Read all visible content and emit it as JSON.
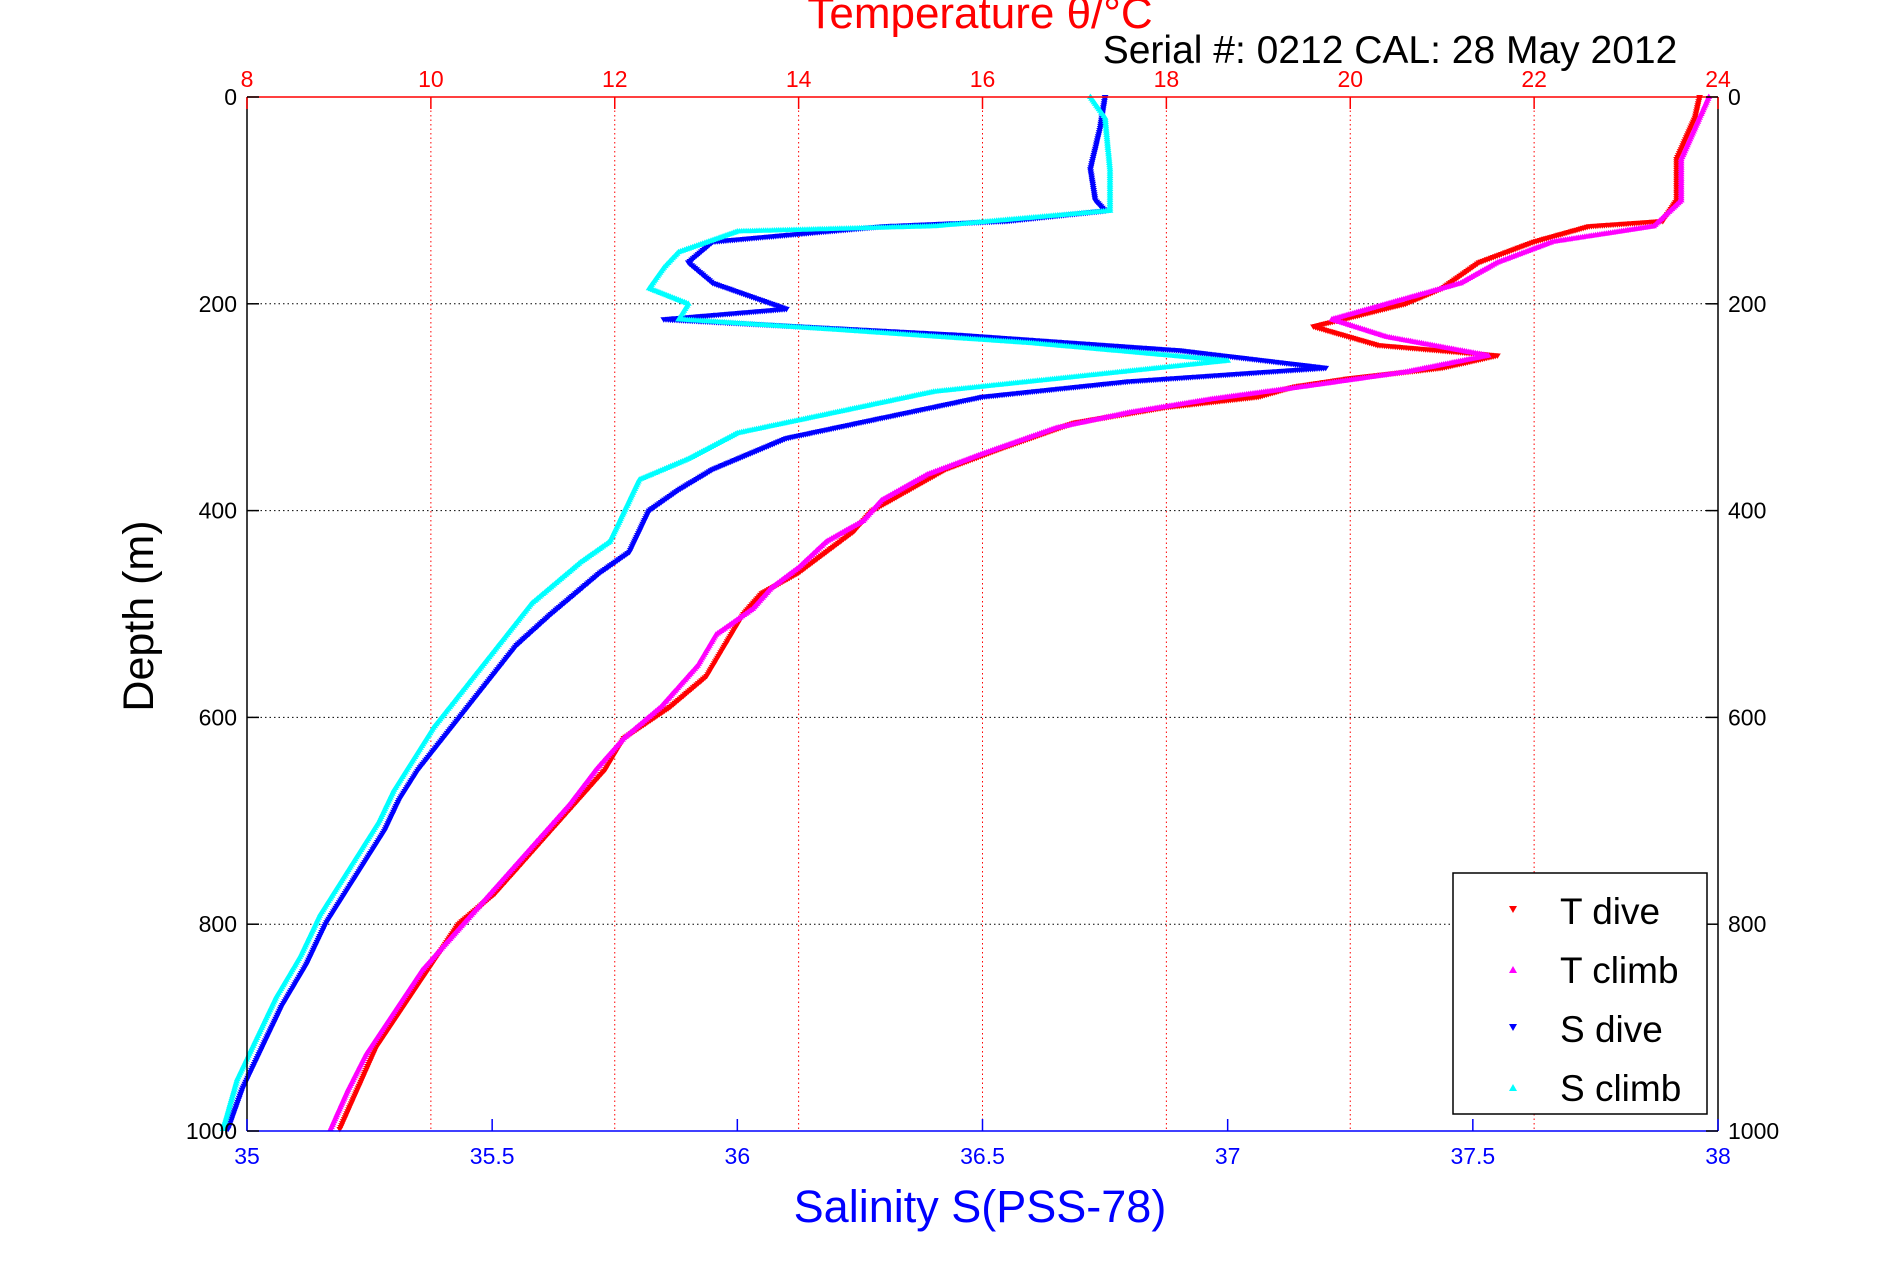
{
  "chart_data": {
    "type": "scatter",
    "title": "Temperature θ/°C",
    "subtitle": "Serial #: 0212  CAL: 28 May 2012",
    "xlabel": "Salinity S(PSS-78)",
    "ylabel": "Depth (m)",
    "x_bottom": {
      "label": "Salinity S(PSS-78)",
      "lim": [
        35,
        38
      ],
      "ticks": [
        "35",
        "35.5",
        "36",
        "36.5",
        "37",
        "37.5",
        "38"
      ],
      "color": "#0000ff"
    },
    "x_top": {
      "label": "Temperature θ/°C",
      "lim": [
        8,
        24
      ],
      "ticks": [
        "8",
        "10",
        "12",
        "14",
        "16",
        "18",
        "20",
        "22",
        "24"
      ],
      "color": "#ff0000"
    },
    "y": {
      "label": "Depth (m)",
      "lim": [
        1000,
        0
      ],
      "ticks": [
        "0",
        "200",
        "400",
        "600",
        "800",
        "1000"
      ],
      "reversed": true
    },
    "grid": true,
    "legend_position": "bottom-right",
    "series": [
      {
        "name": "T dive",
        "axis": "temperature",
        "color": "#ff0000",
        "marker": "triangle-down",
        "points": [
          [
            23.8,
            0
          ],
          [
            23.75,
            20
          ],
          [
            23.55,
            60
          ],
          [
            23.55,
            100
          ],
          [
            23.4,
            120
          ],
          [
            22.6,
            125
          ],
          [
            22.0,
            140
          ],
          [
            21.4,
            160
          ],
          [
            21.0,
            185
          ],
          [
            20.6,
            200
          ],
          [
            19.6,
            222
          ],
          [
            20.3,
            240
          ],
          [
            21.6,
            250
          ],
          [
            21.0,
            262
          ],
          [
            20.0,
            272
          ],
          [
            19.4,
            280
          ],
          [
            19.0,
            290
          ],
          [
            18.0,
            300
          ],
          [
            17.0,
            315
          ],
          [
            16.2,
            340
          ],
          [
            15.6,
            360
          ],
          [
            15.1,
            385
          ],
          [
            14.8,
            400
          ],
          [
            14.6,
            420
          ],
          [
            14.3,
            440
          ],
          [
            14.0,
            460
          ],
          [
            13.6,
            480
          ],
          [
            13.4,
            500
          ],
          [
            13.2,
            530
          ],
          [
            13.0,
            560
          ],
          [
            12.6,
            590
          ],
          [
            12.1,
            620
          ],
          [
            11.9,
            650
          ],
          [
            11.6,
            680
          ],
          [
            11.3,
            710
          ],
          [
            11.0,
            740
          ],
          [
            10.7,
            770
          ],
          [
            10.3,
            800
          ],
          [
            10.0,
            840
          ],
          [
            9.7,
            880
          ],
          [
            9.4,
            920
          ],
          [
            9.2,
            960
          ],
          [
            9.0,
            1000
          ]
        ]
      },
      {
        "name": "T climb",
        "axis": "temperature",
        "color": "#ff00ff",
        "marker": "triangle-up",
        "points": [
          [
            23.9,
            0
          ],
          [
            23.8,
            20
          ],
          [
            23.6,
            60
          ],
          [
            23.6,
            100
          ],
          [
            23.3,
            125
          ],
          [
            22.2,
            140
          ],
          [
            21.6,
            160
          ],
          [
            21.2,
            180
          ],
          [
            20.4,
            200
          ],
          [
            19.8,
            215
          ],
          [
            20.4,
            232
          ],
          [
            21.5,
            250
          ],
          [
            20.6,
            266
          ],
          [
            19.5,
            280
          ],
          [
            18.5,
            292
          ],
          [
            17.6,
            305
          ],
          [
            16.8,
            320
          ],
          [
            16.0,
            345
          ],
          [
            15.4,
            365
          ],
          [
            14.9,
            390
          ],
          [
            14.7,
            410
          ],
          [
            14.3,
            430
          ],
          [
            14.0,
            455
          ],
          [
            13.7,
            475
          ],
          [
            13.5,
            495
          ],
          [
            13.1,
            520
          ],
          [
            12.9,
            550
          ],
          [
            12.5,
            590
          ],
          [
            12.1,
            620
          ],
          [
            11.8,
            650
          ],
          [
            11.5,
            685
          ],
          [
            11.2,
            715
          ],
          [
            10.9,
            745
          ],
          [
            10.6,
            775
          ],
          [
            10.3,
            805
          ],
          [
            9.9,
            845
          ],
          [
            9.6,
            885
          ],
          [
            9.3,
            925
          ],
          [
            9.1,
            960
          ],
          [
            8.9,
            1000
          ]
        ]
      },
      {
        "name": "S dive",
        "axis": "salinity",
        "color": "#0000ff",
        "marker": "triangle-down",
        "points": [
          [
            36.75,
            0
          ],
          [
            36.74,
            30
          ],
          [
            36.72,
            70
          ],
          [
            36.73,
            100
          ],
          [
            36.75,
            110
          ],
          [
            36.55,
            120
          ],
          [
            36.3,
            125
          ],
          [
            35.95,
            140
          ],
          [
            35.9,
            160
          ],
          [
            35.95,
            180
          ],
          [
            36.1,
            205
          ],
          [
            35.85,
            215
          ],
          [
            36.45,
            230
          ],
          [
            36.9,
            245
          ],
          [
            37.2,
            262
          ],
          [
            36.8,
            275
          ],
          [
            36.5,
            290
          ],
          [
            36.3,
            310
          ],
          [
            36.1,
            330
          ],
          [
            35.95,
            360
          ],
          [
            35.88,
            380
          ],
          [
            35.82,
            400
          ],
          [
            35.8,
            420
          ],
          [
            35.78,
            440
          ],
          [
            35.72,
            460
          ],
          [
            35.67,
            480
          ],
          [
            35.62,
            500
          ],
          [
            35.55,
            530
          ],
          [
            35.5,
            560
          ],
          [
            35.45,
            590
          ],
          [
            35.4,
            620
          ],
          [
            35.35,
            650
          ],
          [
            35.31,
            680
          ],
          [
            35.28,
            710
          ],
          [
            35.24,
            740
          ],
          [
            35.2,
            770
          ],
          [
            35.16,
            800
          ],
          [
            35.12,
            840
          ],
          [
            35.07,
            880
          ],
          [
            35.03,
            920
          ],
          [
            34.99,
            960
          ],
          [
            34.96,
            1000
          ]
        ]
      },
      {
        "name": "S climb",
        "axis": "salinity",
        "color": "#00ffff",
        "marker": "triangle-up",
        "points": [
          [
            36.72,
            0
          ],
          [
            36.75,
            20
          ],
          [
            36.76,
            70
          ],
          [
            36.76,
            110
          ],
          [
            36.4,
            125
          ],
          [
            36.0,
            130
          ],
          [
            35.88,
            150
          ],
          [
            35.85,
            165
          ],
          [
            35.82,
            185
          ],
          [
            35.9,
            200
          ],
          [
            35.88,
            215
          ],
          [
            36.2,
            225
          ],
          [
            36.6,
            238
          ],
          [
            37.0,
            255
          ],
          [
            36.7,
            270
          ],
          [
            36.4,
            285
          ],
          [
            36.2,
            305
          ],
          [
            36.0,
            325
          ],
          [
            35.9,
            350
          ],
          [
            35.8,
            370
          ],
          [
            35.78,
            390
          ],
          [
            35.76,
            410
          ],
          [
            35.74,
            430
          ],
          [
            35.68,
            450
          ],
          [
            35.63,
            470
          ],
          [
            35.58,
            490
          ],
          [
            35.53,
            520
          ],
          [
            35.48,
            550
          ],
          [
            35.43,
            580
          ],
          [
            35.38,
            610
          ],
          [
            35.34,
            640
          ],
          [
            35.3,
            670
          ],
          [
            35.27,
            700
          ],
          [
            35.23,
            730
          ],
          [
            35.19,
            760
          ],
          [
            35.15,
            790
          ],
          [
            35.11,
            830
          ],
          [
            35.06,
            870
          ],
          [
            35.02,
            910
          ],
          [
            34.98,
            950
          ],
          [
            34.95,
            1000
          ]
        ]
      }
    ]
  }
}
